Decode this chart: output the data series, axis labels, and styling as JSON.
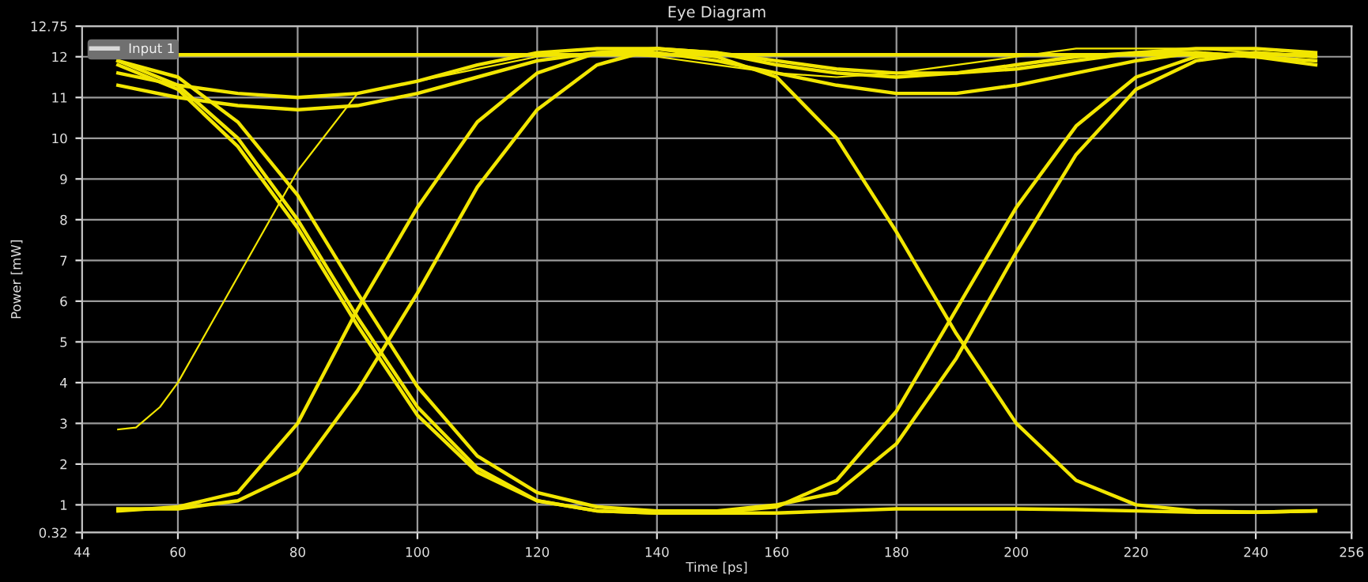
{
  "chart_data": {
    "type": "line",
    "title": "Eye Diagram",
    "xlabel": "Time [ps]",
    "ylabel": "Power [mW]",
    "x": [
      50,
      60,
      70,
      80,
      90,
      100,
      110,
      120,
      130,
      140,
      150,
      160,
      170,
      180,
      190,
      200,
      210,
      220,
      230,
      240,
      250
    ],
    "series": [
      {
        "name": "Input 1",
        "color": "#f2e600",
        "values": [
          null,
          12.05,
          12.05,
          12.05,
          12.05,
          12.05,
          12.05,
          12.05,
          12.05,
          12.05,
          12.05,
          12.05,
          12.05,
          12.05,
          12.05,
          12.05,
          12.05,
          12.05,
          12.05,
          12.05,
          12.05
        ]
      },
      {
        "color": "#f2e600",
        "values": [
          11.6,
          11.3,
          11.1,
          11.0,
          11.1,
          11.4,
          11.8,
          12.1,
          12.2,
          12.2,
          12.1,
          11.9,
          11.7,
          11.6,
          11.6,
          11.7,
          11.9,
          12.1,
          12.2,
          12.2,
          12.1
        ]
      },
      {
        "color": "#f2e600",
        "values": [
          11.3,
          11.0,
          10.8,
          10.7,
          10.8,
          11.1,
          11.5,
          11.9,
          12.1,
          12.1,
          11.9,
          11.6,
          11.3,
          11.1,
          11.1,
          11.3,
          11.6,
          11.9,
          12.1,
          12.0,
          11.8
        ]
      },
      {
        "color": "#f2e600",
        "values": [
          11.8,
          11.2,
          9.8,
          7.8,
          5.4,
          3.2,
          1.8,
          1.1,
          0.85,
          0.8,
          0.82,
          0.95,
          1.6,
          3.3,
          5.8,
          8.3,
          10.3,
          11.5,
          12.0,
          12.1,
          12.0
        ]
      },
      {
        "color": "#f2e600",
        "values": [
          11.9,
          11.5,
          10.4,
          8.6,
          6.2,
          3.9,
          2.2,
          1.3,
          0.95,
          0.85,
          0.85,
          1.0,
          1.3,
          2.5,
          4.6,
          7.2,
          9.6,
          11.2,
          11.9,
          12.1,
          12.0
        ]
      },
      {
        "color": "#f2e600",
        "values": [
          0.85,
          0.95,
          1.3,
          3.0,
          5.8,
          8.3,
          10.4,
          11.6,
          12.1,
          12.2,
          12.0,
          11.5,
          10.0,
          7.7,
          5.2,
          3.0,
          1.6,
          1.0,
          0.85,
          0.82,
          0.85
        ]
      },
      {
        "color": "#f2e600",
        "values": [
          0.9,
          0.9,
          1.1,
          1.8,
          3.8,
          6.2,
          8.8,
          10.7,
          11.8,
          12.2,
          12.1,
          11.8,
          11.6,
          11.5,
          11.6,
          11.8,
          12.0,
          12.1,
          12.1,
          12.0,
          11.9
        ]
      },
      {
        "color": "#f2e600",
        "values": [
          11.9,
          11.3,
          10.0,
          8.0,
          5.6,
          3.4,
          1.9,
          1.1,
          0.85,
          0.8,
          0.8,
          0.8,
          0.85,
          0.9,
          0.9,
          0.9,
          0.88,
          0.85,
          0.82,
          0.82,
          0.85
        ]
      },
      {
        "color": "#f2e600",
        "x": [
          50,
          53,
          57,
          60,
          70,
          80,
          90,
          100,
          110,
          120,
          130,
          140,
          150,
          160,
          170,
          180,
          190,
          200,
          210,
          220,
          230,
          240,
          250
        ],
        "values": [
          2.85,
          2.9,
          3.4,
          4.0,
          6.6,
          9.2,
          11.1,
          11.4,
          11.7,
          12.0,
          12.1,
          12.0,
          11.8,
          11.6,
          11.5,
          11.6,
          11.8,
          12.0,
          12.2,
          12.2,
          12.2,
          12.1,
          12.0
        ]
      }
    ],
    "xlim": [
      44,
      256
    ],
    "xticks": [
      44,
      60,
      80,
      100,
      120,
      140,
      160,
      180,
      200,
      220,
      240,
      256
    ],
    "ylim": [
      0.32,
      12.75
    ],
    "yticks": [
      0.32,
      1,
      2,
      3,
      4,
      5,
      6,
      7,
      8,
      9,
      10,
      11,
      12,
      12.75
    ],
    "grid": true,
    "legend": "top left"
  }
}
